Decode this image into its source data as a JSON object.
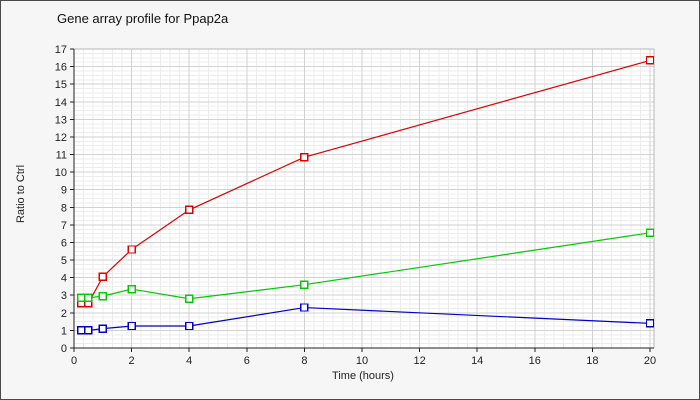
{
  "colors": {
    "window_bg": "#f6f6f6",
    "plot_bg": "#ffffff",
    "grid_minor": "#ececec",
    "grid_major": "#d2d2d2",
    "frame": "#b8b8b8",
    "axis": "#222222",
    "text": "#222222",
    "title_text": "#111111"
  },
  "chart_data": {
    "type": "line",
    "title": "Gene array profile for Ppap2a",
    "xlabel": "Time (hours)",
    "ylabel": "Ratio to Ctrl",
    "x": [
      0.25,
      0.5,
      1,
      2,
      4,
      8,
      20
    ],
    "series": [
      {
        "name": "red",
        "color": "#e00000",
        "values": [
          2.55,
          2.55,
          4.05,
          5.6,
          7.85,
          10.85,
          16.35
        ]
      },
      {
        "name": "green",
        "color": "#00cc00",
        "values": [
          2.85,
          2.85,
          2.95,
          3.35,
          2.8,
          3.6,
          6.55
        ]
      },
      {
        "name": "blue",
        "color": "#0000cc",
        "values": [
          1.0,
          1.0,
          1.1,
          1.25,
          1.25,
          2.3,
          1.4
        ]
      }
    ],
    "xlim": [
      0,
      20.15
    ],
    "ylim": [
      0,
      17
    ],
    "x_ticks": [
      0,
      2,
      4,
      6,
      8,
      10,
      12,
      14,
      16,
      18,
      20
    ],
    "y_ticks": [
      0,
      1,
      2,
      3,
      4,
      5,
      6,
      7,
      8,
      9,
      10,
      11,
      12,
      13,
      14,
      15,
      16,
      17
    ],
    "x_minor_per_major": 6,
    "y_minor_step": 0.25,
    "grid": true,
    "legend": "none",
    "marker": "open-square",
    "marker_size": 7
  }
}
